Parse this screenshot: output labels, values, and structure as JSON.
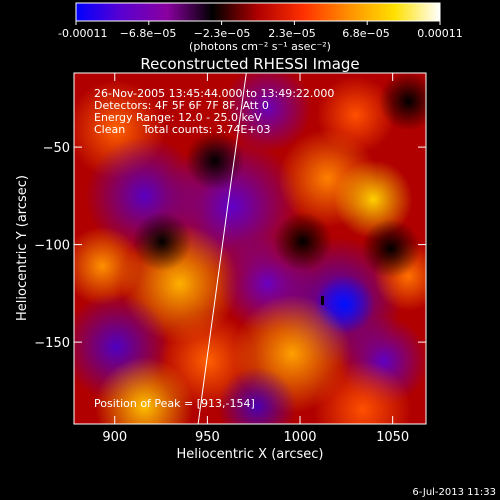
{
  "colorbar": {
    "ticks": [
      "-0.00011",
      "−6.8e−05",
      "−2.3e−05",
      "2.3e−05",
      "6.8e−05",
      "0.00011"
    ],
    "unit_label": "(photons cm⁻² s⁻¹ asec⁻²)",
    "colors": [
      "#0000ff",
      "#5a00d0",
      "#8a00a0",
      "#000000",
      "#b00000",
      "#ff3000",
      "#ff9000",
      "#ffe000",
      "#ffffff"
    ]
  },
  "chart_data": {
    "type": "heatmap",
    "title": "Reconstructed RHESSI Image",
    "xlabel": "Heliocentric X (arcsec)",
    "ylabel": "Heliocentric Y (arcsec)",
    "xlim": [
      878,
      1068
    ],
    "ylim": [
      -192,
      -12
    ],
    "xticks": [
      900,
      950,
      1000,
      1050
    ],
    "yticks": [
      -50,
      -100,
      -150
    ],
    "zlim": [
      -0.00011,
      0.00011
    ],
    "annotations": [
      "26-Nov-2005 13:45:44.000 to 13:49:22.000",
      "Detectors: 4F 5F 6F 7F 8F, Att 0",
      "Energy Range: 12.0 - 25.0 keV",
      "Clean     Total counts: 3.74E+03"
    ],
    "peak_label": "Position of Peak = [913,-154]",
    "peak": [
      913,
      -154
    ],
    "limb_points": [
      [
        971,
        -12
      ],
      [
        961,
        -80
      ],
      [
        951,
        -150
      ],
      [
        945,
        -192
      ]
    ]
  },
  "footer": {
    "date": "6-Jul-2013 11:33"
  }
}
